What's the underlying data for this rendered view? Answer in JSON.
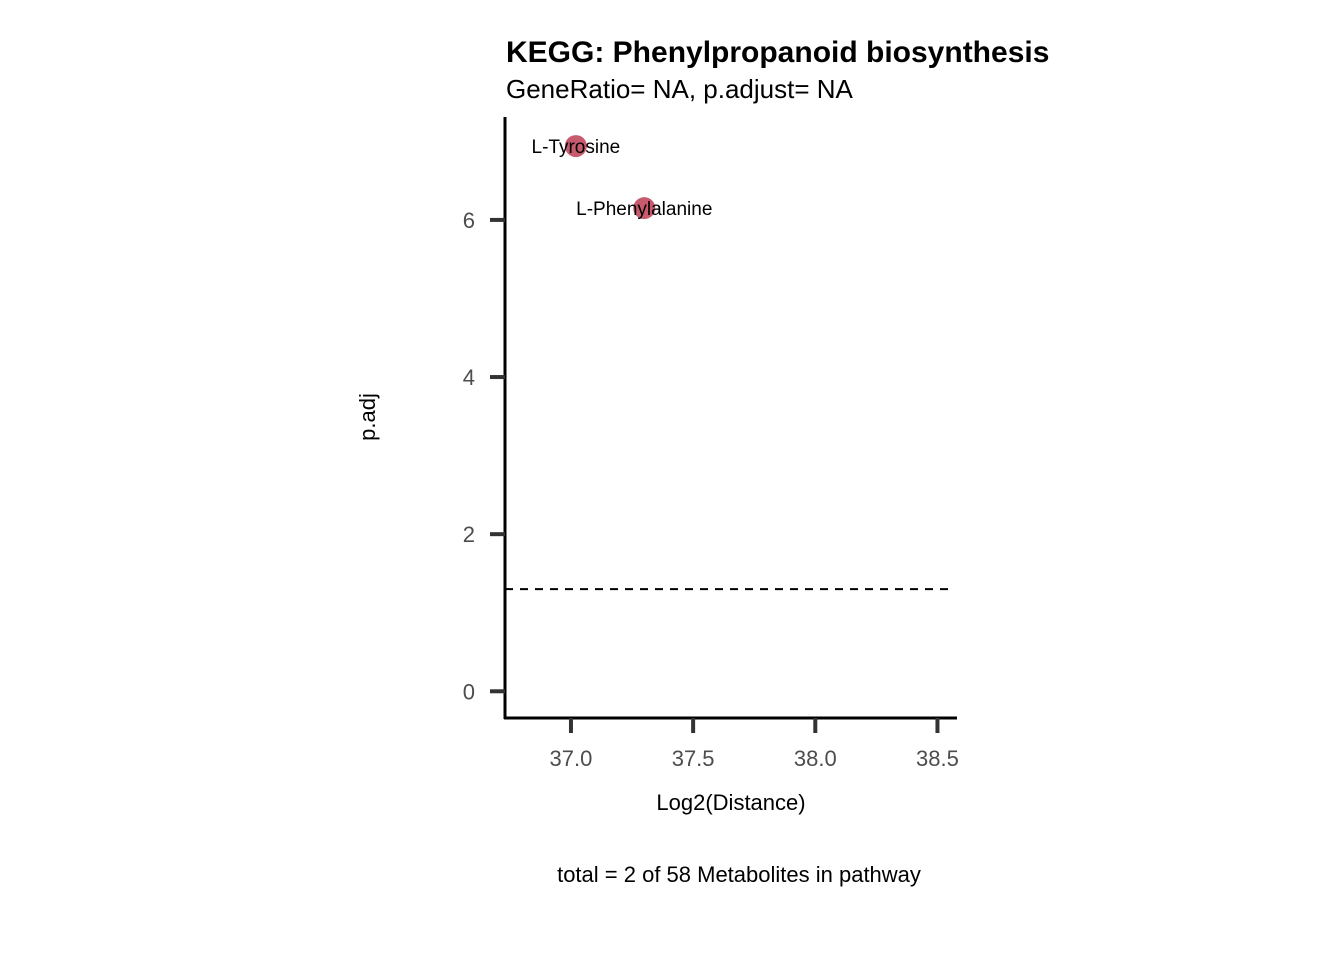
{
  "chart_data": {
    "type": "scatter",
    "title": "KEGG: Phenylpropanoid biosynthesis",
    "subtitle": "GeneRatio= NA, p.adjust= NA",
    "xlabel": "Log2(Distance)",
    "ylabel": "p.adj",
    "caption": "total = 2 of 58 Metabolites in pathway",
    "xlim": [
      36.73,
      38.58
    ],
    "ylim": [
      -0.34,
      7.31
    ],
    "xticks": [
      37.0,
      37.5,
      38.0,
      38.5
    ],
    "xtick_labels": [
      "37.0",
      "37.5",
      "38.0",
      "38.5"
    ],
    "yticks": [
      0,
      2,
      4,
      6
    ],
    "ytick_labels": [
      "0",
      "2",
      "4",
      "6"
    ],
    "threshold": 1.301,
    "point_color": "#c85a6e",
    "points": [
      {
        "label": "L-Tyrosine",
        "x": 37.02,
        "y": 6.94
      },
      {
        "label": "L-Phenylalanine",
        "x": 37.3,
        "y": 6.15
      }
    ],
    "grid": false
  }
}
